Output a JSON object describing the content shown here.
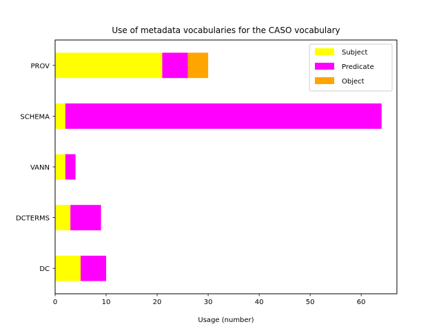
{
  "chart_data": {
    "type": "bar",
    "orientation": "horizontal",
    "stacked": true,
    "title": "Use of metadata vocabularies for the CASO vocabulary",
    "xlabel": "Usage (number)",
    "ylabel": "",
    "xlim": [
      0,
      67
    ],
    "xticks": [
      0,
      10,
      20,
      30,
      40,
      50,
      60
    ],
    "categories": [
      "DC",
      "DCTERMS",
      "VANN",
      "SCHEMA",
      "PROV"
    ],
    "series": [
      {
        "name": "Subject",
        "color": "#ffff00",
        "values": [
          5,
          3,
          2,
          2,
          21
        ]
      },
      {
        "name": "Predicate",
        "color": "#ff00ff",
        "values": [
          5,
          6,
          2,
          62,
          5
        ]
      },
      {
        "name": "Object",
        "color": "#ffa500",
        "values": [
          0,
          0,
          0,
          0,
          4
        ]
      }
    ],
    "legend_position": "top-right",
    "grid": false
  }
}
